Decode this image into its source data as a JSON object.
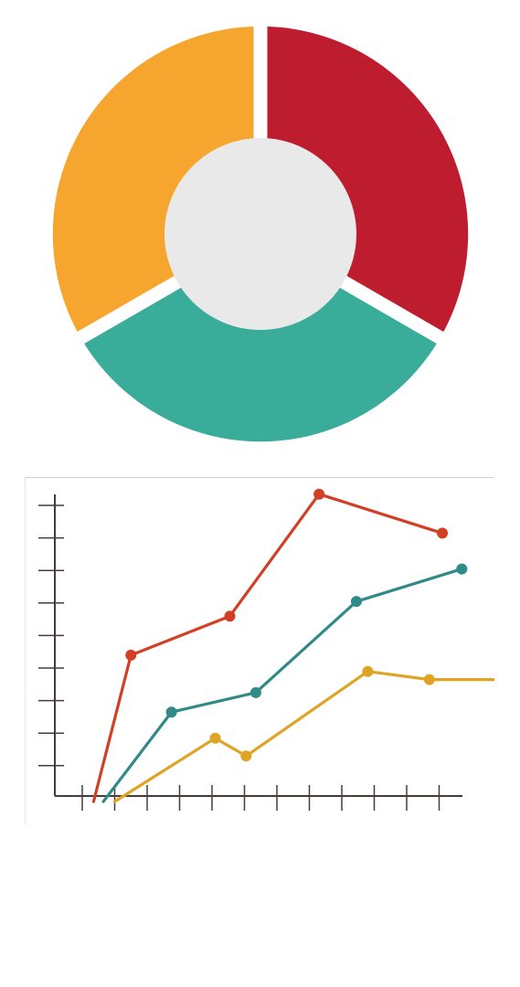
{
  "colors": {
    "red": "#be1c2f",
    "orange": "#f6a62e",
    "teal": "#3aac9a",
    "center": "#e8e9e8",
    "axis": "#4a3a36",
    "line_red": "#d33f24",
    "line_teal": "#2f8a88",
    "line_gold": "#e0a424"
  },
  "chart_data": [
    {
      "type": "pie",
      "slices": [
        {
          "value": 1,
          "color": "#be1c2f"
        },
        {
          "value": 1,
          "color": "#3aac9a"
        },
        {
          "value": 1,
          "color": "#f6a62e"
        }
      ]
    },
    {
      "type": "line",
      "x": [
        0,
        1,
        2,
        3,
        4,
        5,
        6,
        7,
        8,
        9,
        10,
        11
      ],
      "ylim": [
        0,
        9
      ],
      "xlim": [
        0,
        12
      ],
      "grid": false,
      "series": [
        {
          "color": "#d33f24",
          "x": [
            0.35,
            1.5,
            4.55,
            7.3,
            11.1
          ],
          "y": [
            -0.2,
            4.3,
            5.5,
            9.25,
            8.05
          ]
        },
        {
          "color": "#2f8a88",
          "x": [
            0.65,
            2.75,
            5.35,
            8.45,
            11.7
          ],
          "y": [
            -0.2,
            2.55,
            3.15,
            5.95,
            6.95
          ]
        },
        {
          "color": "#e0a424",
          "x": [
            1.0,
            4.1,
            5.05,
            8.8,
            10.7,
            13.1
          ],
          "y": [
            -0.2,
            1.75,
            1.2,
            3.8,
            3.55,
            3.55
          ]
        }
      ],
      "markers": [
        [
          false,
          true,
          true,
          true,
          true
        ],
        [
          false,
          true,
          true,
          true,
          true
        ],
        [
          false,
          true,
          true,
          true,
          true,
          true
        ]
      ]
    }
  ]
}
